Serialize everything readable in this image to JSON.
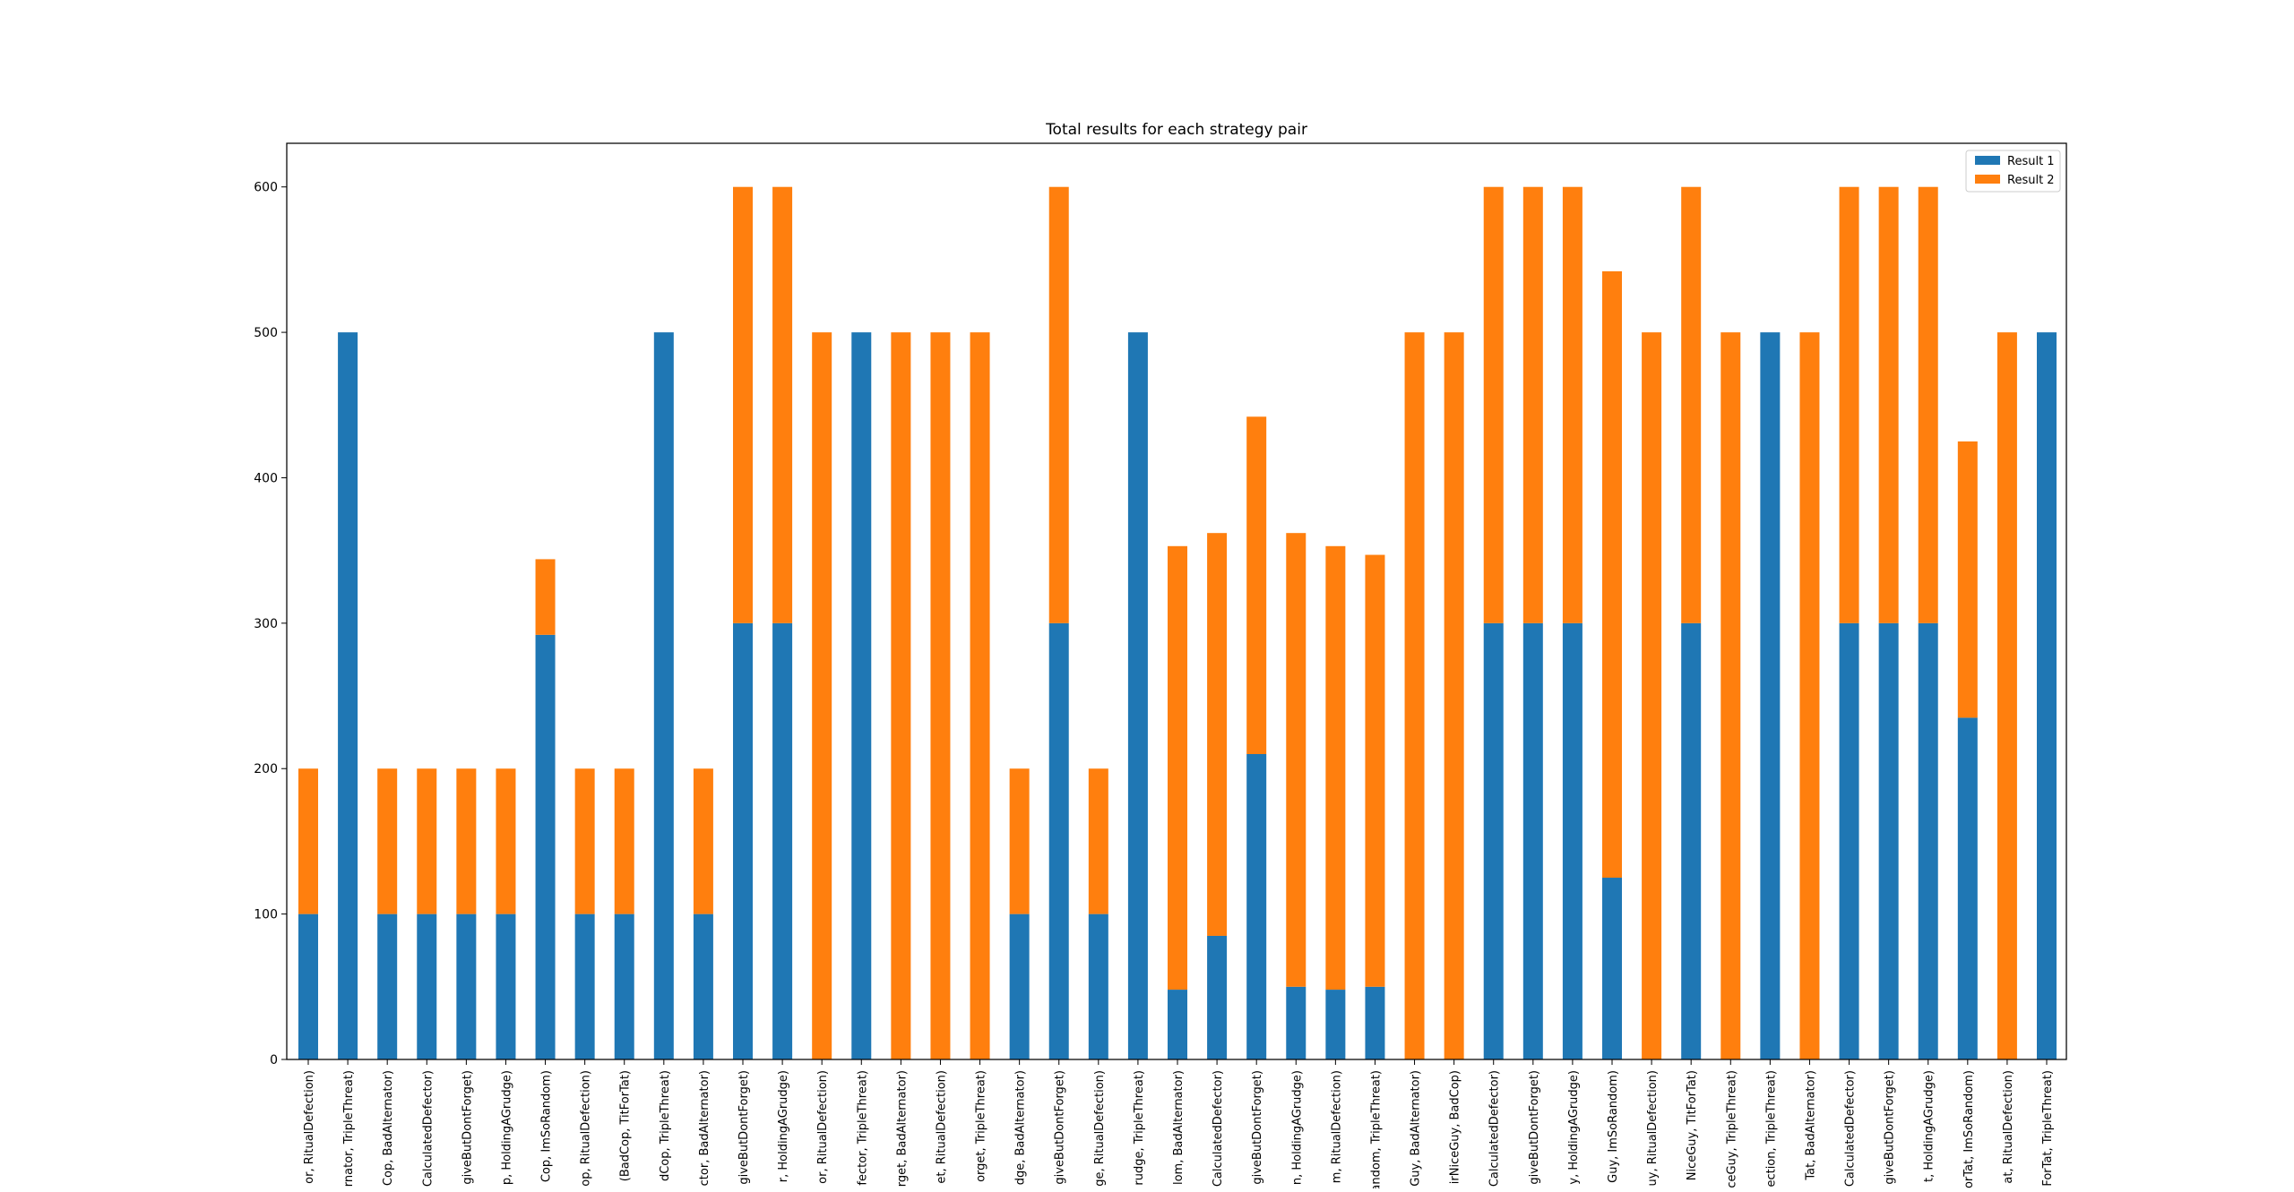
{
  "chart_data": {
    "type": "bar",
    "stacked": true,
    "title": "Total results for each strategy pair",
    "xlabel": "",
    "ylabel": "",
    "ylim": [
      0,
      630
    ],
    "yticks": [
      0,
      100,
      200,
      300,
      400,
      500,
      600
    ],
    "grid": false,
    "legend": "top-right",
    "categories": [
      "or, RitualDefection)",
      "rnator, TripleThreat)",
      "Cop, BadAlternator)",
      "CalculatedDefector)",
      "giveButDontForget)",
      "p, HoldingAGrudge)",
      "Cop, ImSoRandom)",
      "op, RitualDefection)",
      "(BadCop, TitForTat)",
      "dCop, TripleThreat)",
      "ctor, BadAlternator)",
      "giveButDontForget)",
      "r, HoldingAGrudge)",
      "or, RitualDefection)",
      "fector, TripleThreat)",
      "rget, BadAlternator)",
      "et, RitualDefection)",
      "orget, TripleThreat)",
      "dge, BadAlternator)",
      "giveButDontForget)",
      "ge, RitualDefection)",
      "rudge, TripleThreat)",
      "lom, BadAlternator)",
      "CalculatedDefector)",
      "giveButDontForget)",
      "n, HoldingAGrudge)",
      "m, RitualDefection)",
      "andom, TripleThreat)",
      "Guy, BadAlternator)",
      "irNiceGuy, BadCop)",
      "CalculatedDefector)",
      "giveButDontForget)",
      "y, HoldingAGrudge)",
      "Guy, ImSoRandom)",
      "uy, RitualDefection)",
      "NiceGuy, TitForTat)",
      "ceGuy, TripleThreat)",
      "ection, TripleThreat)",
      "Tat, BadAlternator)",
      "CalculatedDefector)",
      "giveButDontForget)",
      "t, HoldingAGrudge)",
      "orTat, ImSoRandom)",
      "at, RitualDefection)",
      "ForTat, TripleThreat)"
    ],
    "series": [
      {
        "name": "Result 1",
        "color": "#1f77b4",
        "values": [
          100,
          500,
          100,
          100,
          100,
          100,
          292,
          100,
          100,
          500,
          100,
          300,
          300,
          0,
          500,
          0,
          0,
          0,
          100,
          300,
          100,
          500,
          48,
          85,
          210,
          50,
          48,
          50,
          0,
          0,
          300,
          300,
          300,
          125,
          0,
          300,
          0,
          500,
          0,
          300,
          300,
          300,
          235,
          0,
          500
        ]
      },
      {
        "name": "Result 2",
        "color": "#ff7f0e",
        "values": [
          100,
          0,
          100,
          100,
          100,
          100,
          52,
          100,
          100,
          0,
          100,
          300,
          300,
          500,
          0,
          500,
          500,
          500,
          100,
          300,
          100,
          0,
          305,
          277,
          232,
          312,
          305,
          297,
          500,
          500,
          300,
          300,
          300,
          417,
          500,
          300,
          500,
          0,
          500,
          300,
          300,
          300,
          190,
          500,
          0
        ]
      }
    ]
  }
}
